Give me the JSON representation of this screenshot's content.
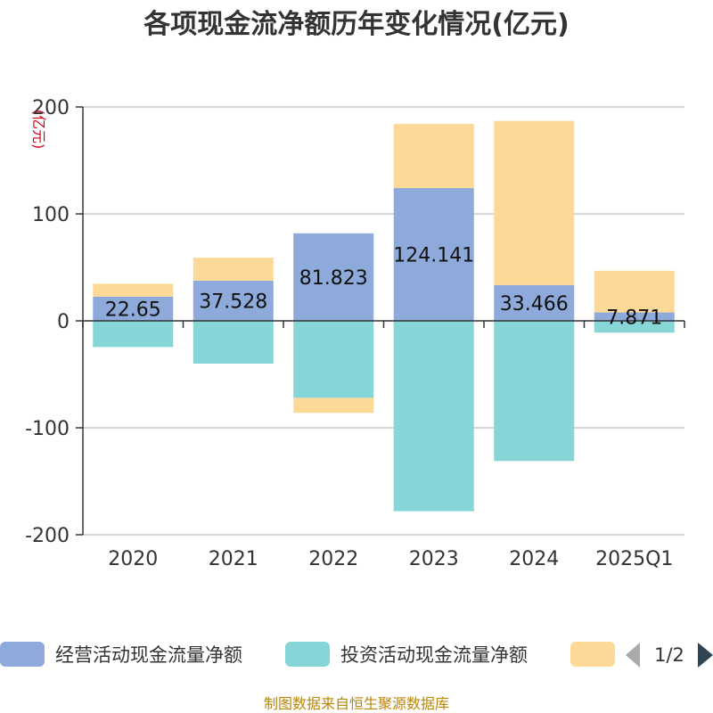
{
  "chart_data": {
    "type": "bar",
    "stacked": true,
    "title": "各项现金流净额历年变化情况(亿元)",
    "ylabel": "(亿元)",
    "xlabel": "",
    "categories": [
      "2020",
      "2021",
      "2022",
      "2023",
      "2024",
      "2025Q1"
    ],
    "ylim": [
      -200,
      200
    ],
    "yticks": [
      200,
      100,
      0,
      -100,
      -200
    ],
    "ytick_labels": [
      "200",
      "100",
      "0",
      "-100",
      "-200"
    ],
    "grid": true,
    "series": [
      {
        "name": "经营活动现金流量净额",
        "color": "#8eaadb",
        "values": [
          22.65,
          37.528,
          81.823,
          124.141,
          33.466,
          7.871
        ],
        "labels": [
          "22.65",
          "37.528",
          "81.823",
          "124.141",
          "33.466",
          "7.871"
        ]
      },
      {
        "name": "投资活动现金流量净额",
        "color": "#86d6d8",
        "values": [
          -24.5,
          -40.0,
          -72.0,
          -178.0,
          -131.0,
          -11.0
        ]
      },
      {
        "name": "",
        "color": "#fdd998",
        "values": [
          12.0,
          21.5,
          -14.0,
          60.0,
          153.5,
          39.0
        ]
      }
    ],
    "legend": {
      "position": "bottom",
      "page": "1/2"
    }
  },
  "source_note": "制图数据来自恒生聚源数据库"
}
